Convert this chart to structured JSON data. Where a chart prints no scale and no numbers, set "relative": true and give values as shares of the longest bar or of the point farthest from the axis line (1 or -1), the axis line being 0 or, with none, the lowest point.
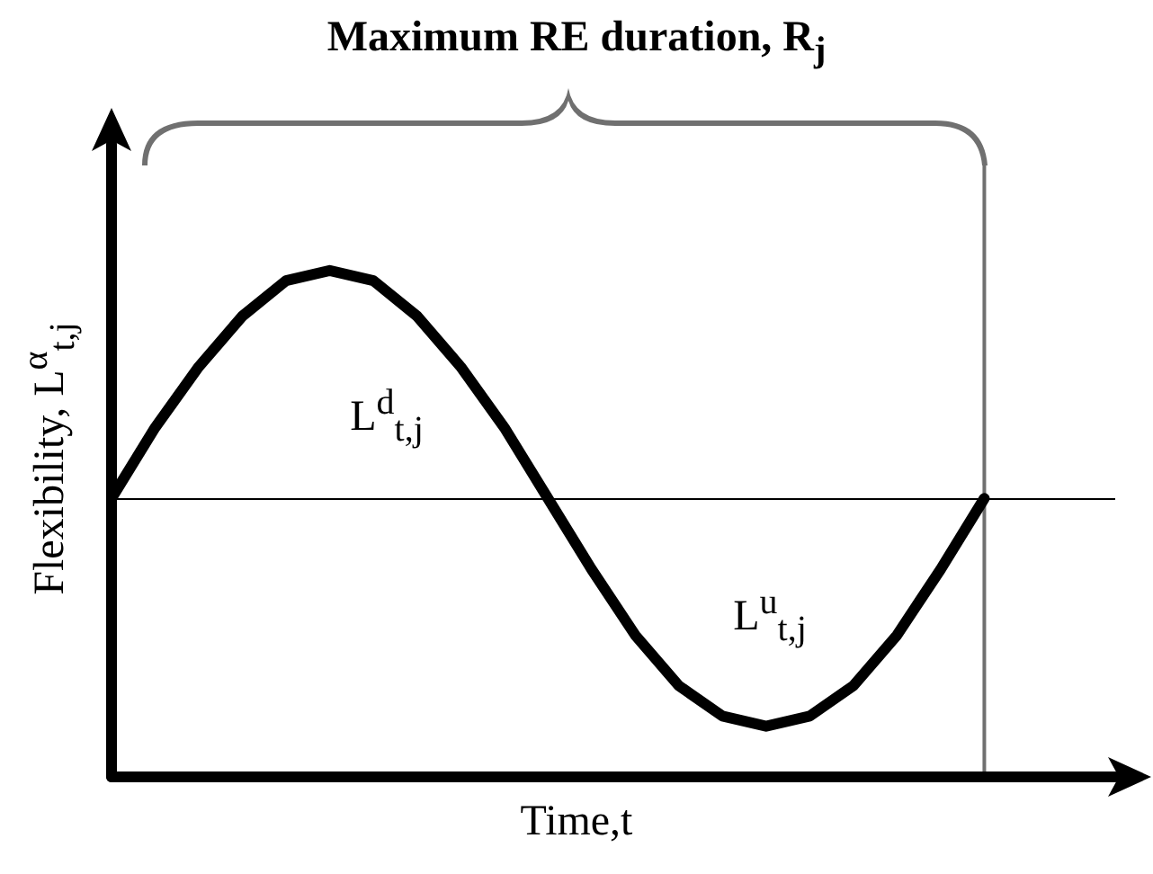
{
  "chart_data": {
    "type": "line",
    "relative": true,
    "title": "Maximum RE duration, R$_{j}$",
    "xlabel": "Time,t",
    "ylabel": "Flexibility, L$^{α}$$_{t,j}$",
    "annotations": [
      "L$^{d}$$_{t,j}$",
      "L$^{u}$$_{t,j}$"
    ],
    "categories": [
      null,
      null,
      null,
      null,
      null,
      null,
      null,
      null,
      null,
      null,
      null,
      null,
      null,
      null,
      null,
      null,
      null,
      null,
      null,
      null,
      null,
      null,
      null,
      null
    ],
    "series": [
      {
        "color": "#000000",
        "values": [
          0.55,
          0.69,
          0.81,
          0.91,
          0.98,
          1.0,
          0.98,
          0.91,
          0.81,
          0.69,
          0.55,
          0.41,
          0.28,
          0.18,
          0.12,
          0.1,
          0.12,
          0.18,
          0.28,
          0.41,
          0.55,
          null,
          null,
          null
        ]
      }
    ],
    "ref_lines": [
      {
        "axis": "y",
        "value": 0.55,
        "color": "#000000"
      }
    ],
    "grid": false,
    "marker": "none",
    "line_style": "solid"
  }
}
